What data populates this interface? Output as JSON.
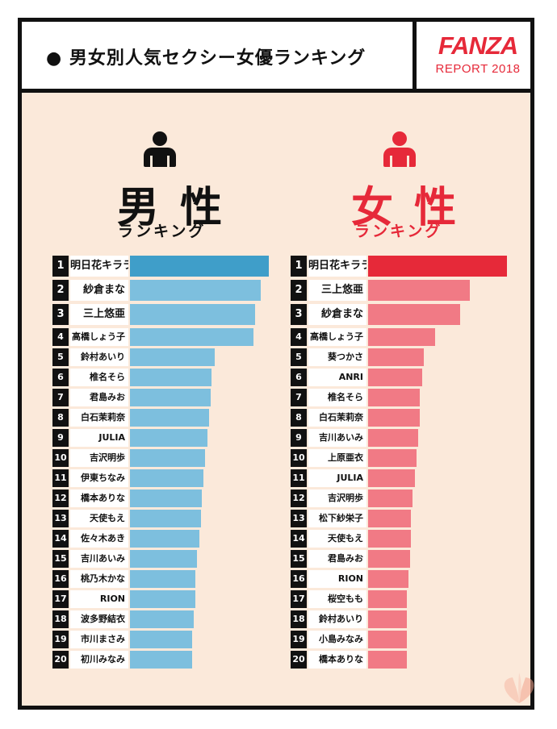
{
  "header": {
    "title": "● 男女別人気セクシー女優ランキング",
    "logo": "FANZA",
    "logo_sub": "REPORT 2018"
  },
  "colors": {
    "male_bar": "#7dbfde",
    "male_bar_top": "#3f9ec9",
    "female_bar": "#f17a85",
    "female_bar_top": "#e62939",
    "brand": "#e62939"
  },
  "male": {
    "icon": "male-person-icon",
    "title": "男 性",
    "subtitle": "ランキング"
  },
  "female": {
    "icon": "female-person-icon",
    "title": "女 性",
    "subtitle": "ランキング"
  },
  "chart_data": [
    {
      "type": "bar",
      "title": "男性 ランキング",
      "orientation": "horizontal",
      "ranks": [
        1,
        2,
        3,
        4,
        5,
        6,
        7,
        8,
        9,
        10,
        11,
        12,
        13,
        14,
        15,
        16,
        17,
        18,
        19,
        20
      ],
      "categories": [
        "明日花キララ",
        "紗倉まな",
        "三上悠亜",
        "高橋しょう子",
        "鈴村あいり",
        "椎名そら",
        "君島みお",
        "白石茉莉奈",
        "JULIA",
        "吉沢明歩",
        "伊東ちなみ",
        "橋本ありな",
        "天使もえ",
        "佐々木あき",
        "吉川あいみ",
        "桃乃木かな",
        "RION",
        "波多野結衣",
        "市川まさみ",
        "初川みなみ"
      ],
      "values": [
        100,
        94,
        90,
        89,
        61,
        59,
        58,
        57,
        56,
        54,
        53,
        52,
        51,
        50,
        48,
        47,
        47,
        46,
        45,
        45
      ],
      "xlim": [
        0,
        100
      ]
    },
    {
      "type": "bar",
      "title": "女性 ランキング",
      "orientation": "horizontal",
      "ranks": [
        1,
        2,
        3,
        4,
        5,
        6,
        7,
        8,
        9,
        10,
        11,
        12,
        13,
        14,
        15,
        16,
        17,
        18,
        19,
        20
      ],
      "categories": [
        "明日花キララ",
        "三上悠亜",
        "紗倉まな",
        "高橋しょう子",
        "葵つかさ",
        "ANRI",
        "椎名そら",
        "白石茉莉奈",
        "吉川あいみ",
        "上原亜衣",
        "JULIA",
        "吉沢明歩",
        "松下紗栄子",
        "天使もえ",
        "君島みお",
        "RION",
        "桜空もも",
        "鈴村あいり",
        "小島みなみ",
        "橋本ありな"
      ],
      "values": [
        100,
        73,
        66,
        48,
        40,
        39,
        37,
        37,
        36,
        35,
        34,
        32,
        31,
        31,
        30,
        29,
        28,
        28,
        28,
        28
      ],
      "xlim": [
        0,
        100
      ]
    }
  ]
}
